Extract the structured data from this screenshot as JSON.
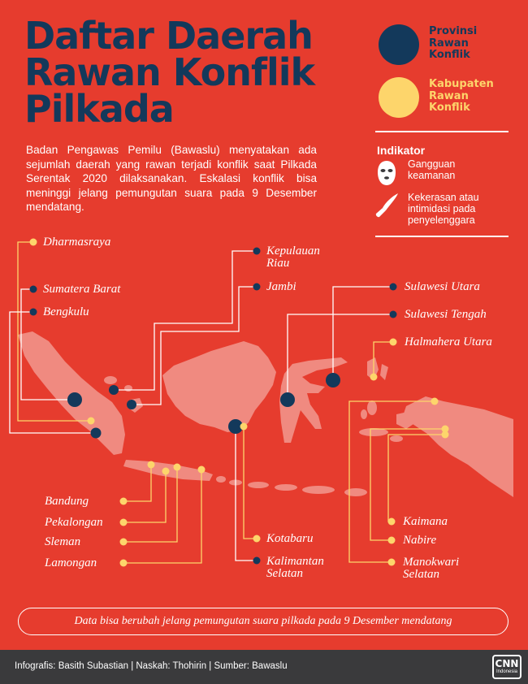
{
  "title": {
    "line1": "Daftar Daerah",
    "line2": "Rawan Konflik",
    "line3": "Pilkada"
  },
  "intro": "Badan Pengawas Pemilu (Bawaslu) menyatakan ada sejumlah daerah yang rawan terjadi konflik saat Pilkada Serentak 2020 dilaksanakan. Eskalasi konflik bisa meninggi jelang pemungutan suara pada 9 Desember mendatang.",
  "legend": {
    "province": {
      "line1": "Provinsi",
      "line2": "Rawan",
      "line3": "Konflik",
      "color": "#13395b"
    },
    "regency": {
      "line1": "Kabupaten",
      "line2": "Rawan",
      "line3": "Konflik",
      "color": "#fdd56b"
    }
  },
  "indicator": {
    "title": "Indikator",
    "items": [
      {
        "icon": "balaclava-icon",
        "line1": "Gangguan",
        "line2": "keamanan"
      },
      {
        "icon": "knife-icon",
        "line1": "Kekerasan atau",
        "line2": "intimidasi pada",
        "line3": "penyelenggara"
      }
    ]
  },
  "regions": {
    "dharmasraya": "Dharmasraya",
    "sumatera_barat": "Sumatera Barat",
    "bengkulu": "Bengkulu",
    "kepulauan_riau_1": "Kepulauan",
    "kepulauan_riau_2": "Riau",
    "jambi": "Jambi",
    "sulawesi_utara": "Sulawesi Utara",
    "sulawesi_tengah": "Sulawesi Tengah",
    "halmahera_utara": "Halmahera Utara",
    "bandung": "Bandung",
    "pekalongan": "Pekalongan",
    "sleman": "Sleman",
    "lamongan": "Lamongan",
    "kotabaru": "Kotabaru",
    "kalimantan_selatan_1": "Kalimantan",
    "kalimantan_selatan_2": "Selatan",
    "kaimana": "Kaimana",
    "nabire": "Nabire",
    "manokwari_selatan_1": "Manokwari",
    "manokwari_selatan_2": "Selatan"
  },
  "note": "Data bisa berubah jelang pemungutan suara pilkada pada 9 Desember mendatang",
  "footer": "Infografis: Basith Subastian | Naskah: Thohirin | Sumber: Bawaslu",
  "logo": {
    "main": "CNN",
    "sub": "Indonesia"
  },
  "colors": {
    "background": "#e63c2e",
    "navy": "#13395b",
    "yellow": "#fdd56b",
    "land": "#f08a80"
  }
}
